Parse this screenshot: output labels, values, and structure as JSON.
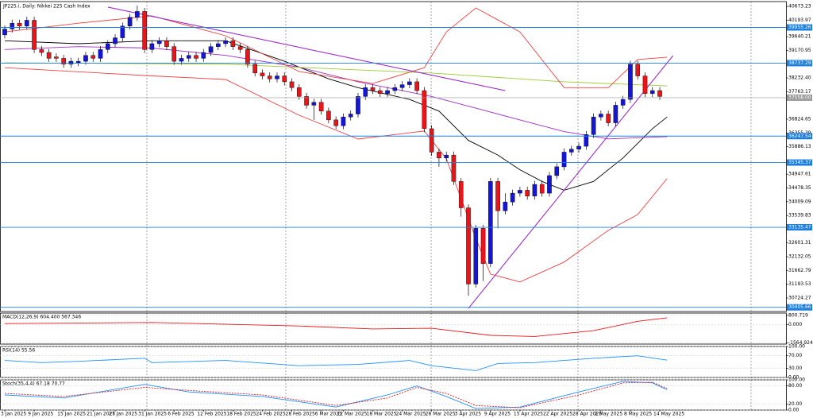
{
  "chart_data": {
    "type": "candlestick",
    "title": "JP225.i, Daily: Nikkei 225 Cash Index",
    "categories": [
      "3 Jan 2025",
      null,
      null,
      null,
      "9 Jan 2025",
      null,
      null,
      null,
      "15 Jan 2025",
      null,
      null,
      null,
      "21 Jan 2025",
      null,
      null,
      "27 Jan 2025",
      null,
      null,
      null,
      "31 Jan 2025",
      null,
      null,
      null,
      "6 Feb 2025",
      null,
      null,
      null,
      "12 Feb 2025",
      null,
      null,
      null,
      "18 Feb 2025",
      null,
      null,
      null,
      "24 Feb 2025",
      null,
      null,
      null,
      "28 Feb 2025",
      null,
      null,
      null,
      "6 Mar 2025",
      null,
      null,
      "12 Mar 2025",
      null,
      null,
      null,
      "18 Mar 2025",
      null,
      null,
      null,
      "24 Mar 2025",
      null,
      null,
      null,
      "28 Mar 2025",
      null,
      null,
      null,
      "3 Apr 2025",
      null,
      null,
      null,
      "9 Apr 2025",
      null,
      null,
      null,
      "15 Apr 2025",
      null,
      null,
      null,
      "22 Apr 2025",
      null,
      null,
      null,
      "28 Apr 2025",
      null,
      null,
      "2 May 2025",
      null,
      null,
      null,
      "8 May 2025",
      null,
      null,
      null,
      "14 May 2025"
    ],
    "open": [
      39700,
      39900,
      40100,
      40000,
      40200,
      39200,
      39100,
      38950,
      38900,
      38700,
      38750,
      38800,
      39000,
      38900,
      39200,
      39400,
      39600,
      40000,
      40300,
      40500,
      39200,
      39400,
      39500,
      39300,
      38800,
      38900,
      39000,
      38900,
      39100,
      39300,
      39400,
      39500,
      39300,
      39200,
      38700,
      38400,
      38300,
      38200,
      38300,
      38100,
      37900,
      37600,
      37300,
      37400,
      37100,
      36800,
      36600,
      36900,
      37000,
      37600,
      37900,
      37800,
      37700,
      37800,
      37900,
      38000,
      38100,
      37800,
      36500,
      35700,
      35500,
      35600,
      34700,
      33800,
      31200,
      33100,
      31900,
      34700,
      33700,
      34000,
      34300,
      34400,
      34200,
      34600,
      34300,
      34900,
      35200,
      35700,
      35800,
      35900,
      36300,
      36900,
      37000,
      36700,
      37300,
      37500,
      38700,
      38300,
      37700,
      37800
    ],
    "high": [
      40020,
      40220,
      40220,
      40320,
      40320,
      39320,
      39220,
      39070,
      39020,
      38920,
      38920,
      39120,
      39120,
      39320,
      39520,
      39720,
      40120,
      40420,
      40700,
      40620,
      39520,
      39620,
      39620,
      39420,
      39020,
      39120,
      39120,
      39220,
      39420,
      39520,
      39620,
      39620,
      39420,
      39320,
      38820,
      38520,
      38420,
      38420,
      38420,
      38220,
      38020,
      37720,
      37520,
      37520,
      37220,
      36920,
      37020,
      37120,
      37720,
      38020,
      38020,
      37920,
      37920,
      38020,
      38120,
      38220,
      38220,
      37920,
      36620,
      35820,
      35720,
      35720,
      34820,
      33920,
      33220,
      33220,
      34820,
      34820,
      34300,
      34420,
      34520,
      34520,
      34720,
      34720,
      35020,
      35320,
      35820,
      35920,
      36020,
      36420,
      37020,
      37120,
      37120,
      37420,
      37620,
      38820,
      38820,
      38420,
      37920,
      37920
    ],
    "low": [
      39580,
      39780,
      39880,
      39880,
      39080,
      38980,
      38780,
      38780,
      38580,
      38580,
      38630,
      38680,
      38780,
      38780,
      39080,
      39280,
      39480,
      39880,
      40180,
      39080,
      39080,
      39280,
      39180,
      38680,
      38680,
      38780,
      38780,
      38780,
      38980,
      39180,
      39280,
      39180,
      39080,
      38580,
      38280,
      38180,
      38080,
      38080,
      37980,
      37780,
      37480,
      37180,
      36800,
      36980,
      36680,
      36480,
      36480,
      36780,
      36880,
      37480,
      37680,
      37580,
      37580,
      37680,
      37780,
      37880,
      37680,
      36380,
      35580,
      35200,
      35380,
      34580,
      33500,
      30800,
      31080,
      31300,
      31780,
      33100,
      33580,
      33880,
      34180,
      34080,
      34080,
      34180,
      34180,
      34780,
      35080,
      35580,
      35680,
      35780,
      36180,
      36780,
      36580,
      36580,
      37180,
      37380,
      38180,
      37580,
      37580,
      37480
    ],
    "close": [
      39900,
      40100,
      40000,
      40200,
      39200,
      39100,
      38900,
      38900,
      38700,
      38800,
      38800,
      39000,
      38900,
      39200,
      39400,
      39600,
      40000,
      40300,
      40500,
      39200,
      39400,
      39500,
      39300,
      38800,
      38900,
      39000,
      38900,
      39100,
      39300,
      39400,
      39500,
      39300,
      39200,
      38700,
      38400,
      38300,
      38200,
      38300,
      38100,
      37900,
      37600,
      37300,
      37400,
      37100,
      36800,
      36600,
      36900,
      37000,
      37600,
      37900,
      37800,
      37700,
      37800,
      37900,
      38000,
      38100,
      37800,
      36500,
      35700,
      35500,
      35600,
      34700,
      33800,
      31200,
      33100,
      31900,
      34700,
      33700,
      34000,
      34300,
      34400,
      34200,
      34600,
      34300,
      34900,
      35200,
      35700,
      35800,
      35900,
      36300,
      36900,
      37000,
      36700,
      37300,
      37500,
      38700,
      38300,
      37700,
      37800,
      37600
    ],
    "up_color": "#1515d8",
    "down_color": "#e8161b",
    "wick_color": "#000000",
    "ylim": [
      30317,
      40809
    ],
    "yticks": [
      40673.23,
      40193.97,
      39640.21,
      39170.95,
      {
        "value": 38232.4,
        "label": "38232.40"
      },
      37763.17,
      36824.65,
      36355.39,
      35886.13,
      34947.61,
      34478.35,
      34009.09,
      33539.83,
      33070.57,
      32601.31,
      32132.05,
      31662.79,
      31193.53,
      30724.27
    ],
    "levels": [
      39955.26,
      38737.29,
      36247.54,
      35345.37,
      33135.47,
      30405.66
    ],
    "level_color": "#1e7fe0",
    "current_price": {
      "value": 37558,
      "label": "37558.00"
    },
    "current_color": "#9a9a9a",
    "overlays": [
      {
        "color": "#000000",
        "x": [
          0,
          10,
          20,
          30,
          38,
          44,
          48,
          55,
          59,
          63,
          67,
          70,
          73,
          76,
          80,
          84,
          88,
          90
        ],
        "values": [
          39500,
          39400,
          39500,
          39500,
          38800,
          38200,
          37900,
          37500,
          37100,
          36100,
          35600,
          35100,
          34700,
          34400,
          34700,
          35500,
          36500,
          36900
        ]
      },
      {
        "color": "#9b2fc9",
        "x": [
          0,
          10,
          20,
          30,
          40,
          48,
          58,
          64,
          70,
          76,
          82,
          90
        ],
        "values": [
          39200,
          39300,
          39250,
          39000,
          38600,
          38100,
          37600,
          37200,
          36800,
          36400,
          36150,
          36230
        ]
      },
      {
        "color": "#9acd32",
        "x": [
          0,
          30,
          58,
          76,
          90
        ],
        "values": [
          38750,
          38700,
          38400,
          38100,
          37960
        ]
      },
      {
        "color": "#f04040",
        "x": [
          0,
          10,
          20,
          30,
          40,
          50,
          57,
          60,
          64,
          70,
          76,
          82,
          86,
          90
        ],
        "values": [
          39800,
          40100,
          40350,
          39670,
          38450,
          38040,
          38580,
          39800,
          40620,
          39800,
          37900,
          37900,
          38860,
          38940
        ]
      },
      {
        "color": "#f04040",
        "x": [
          0,
          20,
          30,
          40,
          48,
          57,
          60,
          64,
          66,
          70,
          76,
          82,
          86,
          90
        ],
        "values": [
          38580,
          38300,
          38180,
          36960,
          36146,
          36420,
          35470,
          32760,
          31540,
          31270,
          31950,
          33030,
          33570,
          34800
        ]
      }
    ],
    "trendlines": [
      {
        "color": "#9b2fc9",
        "x": [
          14,
          68
        ],
        "values": [
          40650,
          37800
        ]
      },
      {
        "color": "#9b2fc9",
        "x": [
          63,
          90.8
        ],
        "values": [
          30371,
          38993
        ]
      }
    ],
    "indicators": [
      {
        "title": "MACD(12,26,9) 604.400 567.346",
        "ylim": [
          -1650,
          1000
        ],
        "yticks": [
          800.719,
          {
            "value": 0,
            "label": "0.000"
          },
          -1564.924
        ],
        "lines": [
          {
            "color": "#e8161b",
            "dashed": false,
            "x": [
              0,
              20,
              40,
              50,
              58,
              66,
              72,
              80,
              86,
              90
            ],
            "values": [
              100,
              200,
              -100,
              -350,
              -300,
              -900,
              -1000,
              -500,
              300,
              600
            ]
          }
        ]
      },
      {
        "title": "RSI(14) 55.56",
        "ylim": [
          0,
          100
        ],
        "yticks": [
          {
            "value": 100,
            "label": "100.00"
          },
          {
            "value": 70,
            "label": "70.00"
          },
          {
            "value": 30,
            "label": "30.00"
          },
          {
            "value": 0,
            "label": "0.00"
          }
        ],
        "lines": [
          {
            "color": "#1e90ff",
            "dashed": false,
            "x": [
              0,
              5,
              10,
              19,
              20,
              30,
              40,
              48,
              55,
              58,
              64,
              67,
              72,
              80,
              86,
              90
            ],
            "values": [
              55,
              48,
              52,
              62,
              48,
              55,
              38,
              42,
              55,
              38,
              22,
              45,
              48,
              62,
              70,
              56
            ]
          }
        ]
      },
      {
        "title": "Stoch(35,4,4) 67.18 70.77",
        "ylim": [
          0,
          100
        ],
        "yticks": [
          {
            "value": 100,
            "label": "100.00"
          },
          {
            "value": 80,
            "label": "80.00"
          },
          {
            "value": 20,
            "label": "20.00"
          },
          {
            "value": 0,
            "label": "0.00"
          }
        ],
        "lines": [
          {
            "color": "#1e90ff",
            "dashed": false,
            "x": [
              0,
              8,
              19,
              25,
              35,
              45,
              52,
              56,
              60,
              64,
              70,
              78,
              84,
              88,
              90
            ],
            "values": [
              50,
              40,
              85,
              60,
              45,
              10,
              50,
              80,
              45,
              5,
              10,
              60,
              95,
              90,
              67
            ]
          },
          {
            "color": "#e8161b",
            "dashed": true,
            "x": [
              0,
              8,
              19,
              25,
              35,
              45,
              52,
              56,
              60,
              64,
              70,
              78,
              84,
              88,
              90
            ],
            "values": [
              55,
              45,
              75,
              65,
              50,
              15,
              40,
              75,
              55,
              15,
              8,
              50,
              90,
              92,
              71
            ]
          }
        ]
      }
    ]
  }
}
